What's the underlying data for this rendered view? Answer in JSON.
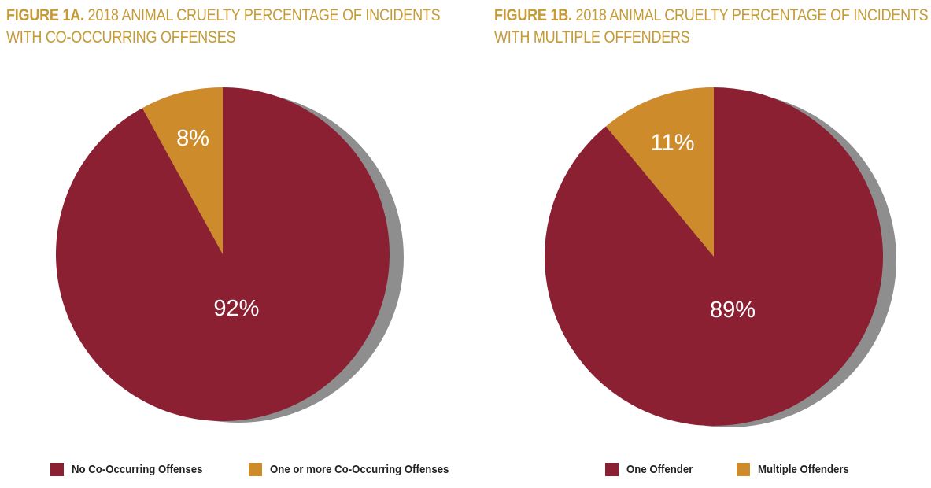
{
  "colors": {
    "primary": "#8b2033",
    "secondary": "#cd8b2c",
    "shadow": "#8e8e8e",
    "title": "#c59a37",
    "label": "#ffffff"
  },
  "chart_data": [
    {
      "type": "pie",
      "title_prefix": "FIGURE 1A.",
      "title_line1": "2018 ANIMAL CRUELTY PERCENTAGE OF INCIDENTS",
      "title_line2": "WITH CO-OCCURRING OFFENSES",
      "categories": [
        "No Co-Occurring Offenses",
        "One or more Co-Occurring Offenses"
      ],
      "values": [
        92,
        8
      ],
      "data_labels": [
        "92%",
        "8%"
      ],
      "legend_position": "bottom"
    },
    {
      "type": "pie",
      "title_prefix": "FIGURE 1B.",
      "title_line1": "2018 ANIMAL CRUELTY PERCENTAGE OF INCIDENTS",
      "title_line2": "WITH MULTIPLE OFFENDERS",
      "categories": [
        "One Offender",
        "Multiple Offenders"
      ],
      "values": [
        89,
        11
      ],
      "data_labels": [
        "89%",
        "11%"
      ],
      "legend_position": "bottom"
    }
  ]
}
